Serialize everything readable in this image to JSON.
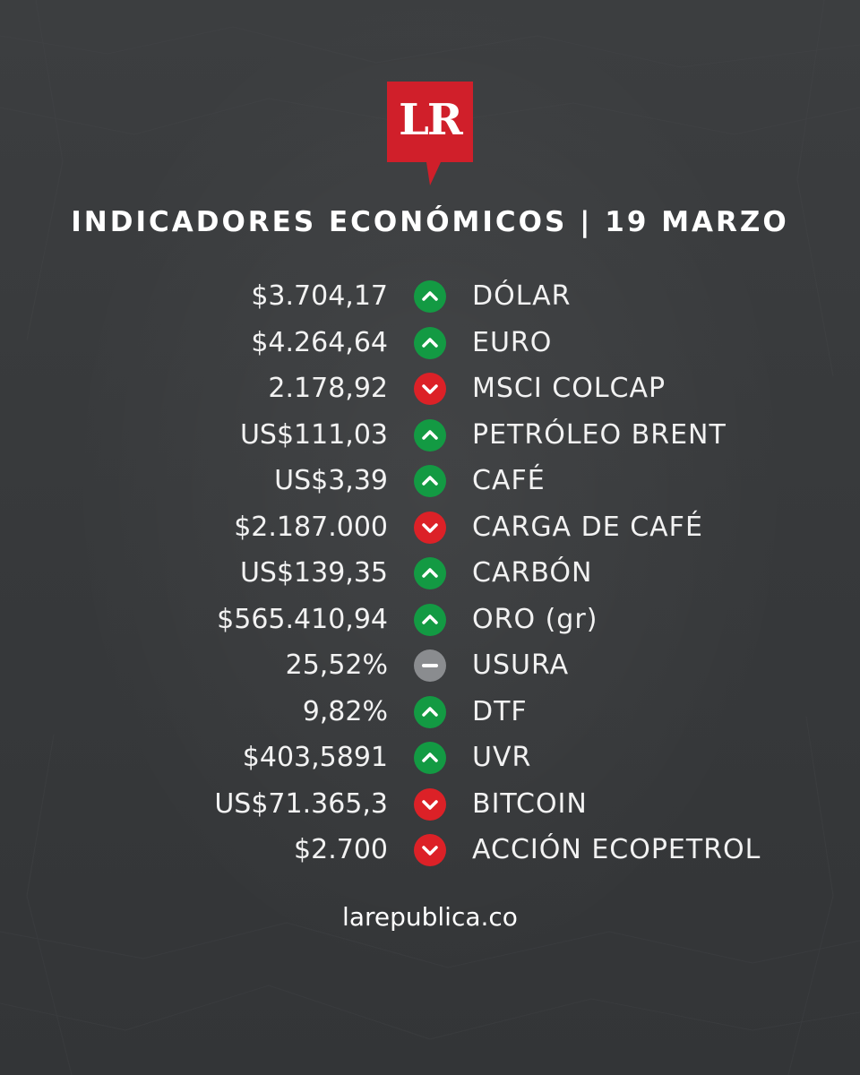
{
  "brand": {
    "logo_text": "LR",
    "logo_color": "#d01f2a"
  },
  "headline": "INDICADORES ECONÓMICOS | 19 MARZO",
  "colors": {
    "up": "#139a43",
    "down": "#dc2127",
    "flat": "#8a8c8f"
  },
  "indicators": [
    {
      "value": "$3.704,17",
      "trend": "up",
      "name": "DÓLAR"
    },
    {
      "value": "$4.264,64",
      "trend": "up",
      "name": "EURO"
    },
    {
      "value": "2.178,92",
      "trend": "down",
      "name": "MSCI COLCAP"
    },
    {
      "value": "US$111,03",
      "trend": "up",
      "name": "PETRÓLEO BRENT"
    },
    {
      "value": "US$3,39",
      "trend": "up",
      "name": "CAFÉ"
    },
    {
      "value": "$2.187.000",
      "trend": "down",
      "name": "CARGA DE CAFÉ"
    },
    {
      "value": "US$139,35",
      "trend": "up",
      "name": "CARBÓN"
    },
    {
      "value": "$565.410,94",
      "trend": "up",
      "name": "ORO (gr)"
    },
    {
      "value": "25,52%",
      "trend": "flat",
      "name": "USURA"
    },
    {
      "value": "9,82%",
      "trend": "up",
      "name": "DTF"
    },
    {
      "value": "$403,5891",
      "trend": "up",
      "name": "UVR"
    },
    {
      "value": "US$71.365,3",
      "trend": "down",
      "name": "BITCOIN"
    },
    {
      "value": "$2.700",
      "trend": "down",
      "name": "ACCIÓN ECOPETROL"
    }
  ],
  "footer": "larepublica.co"
}
